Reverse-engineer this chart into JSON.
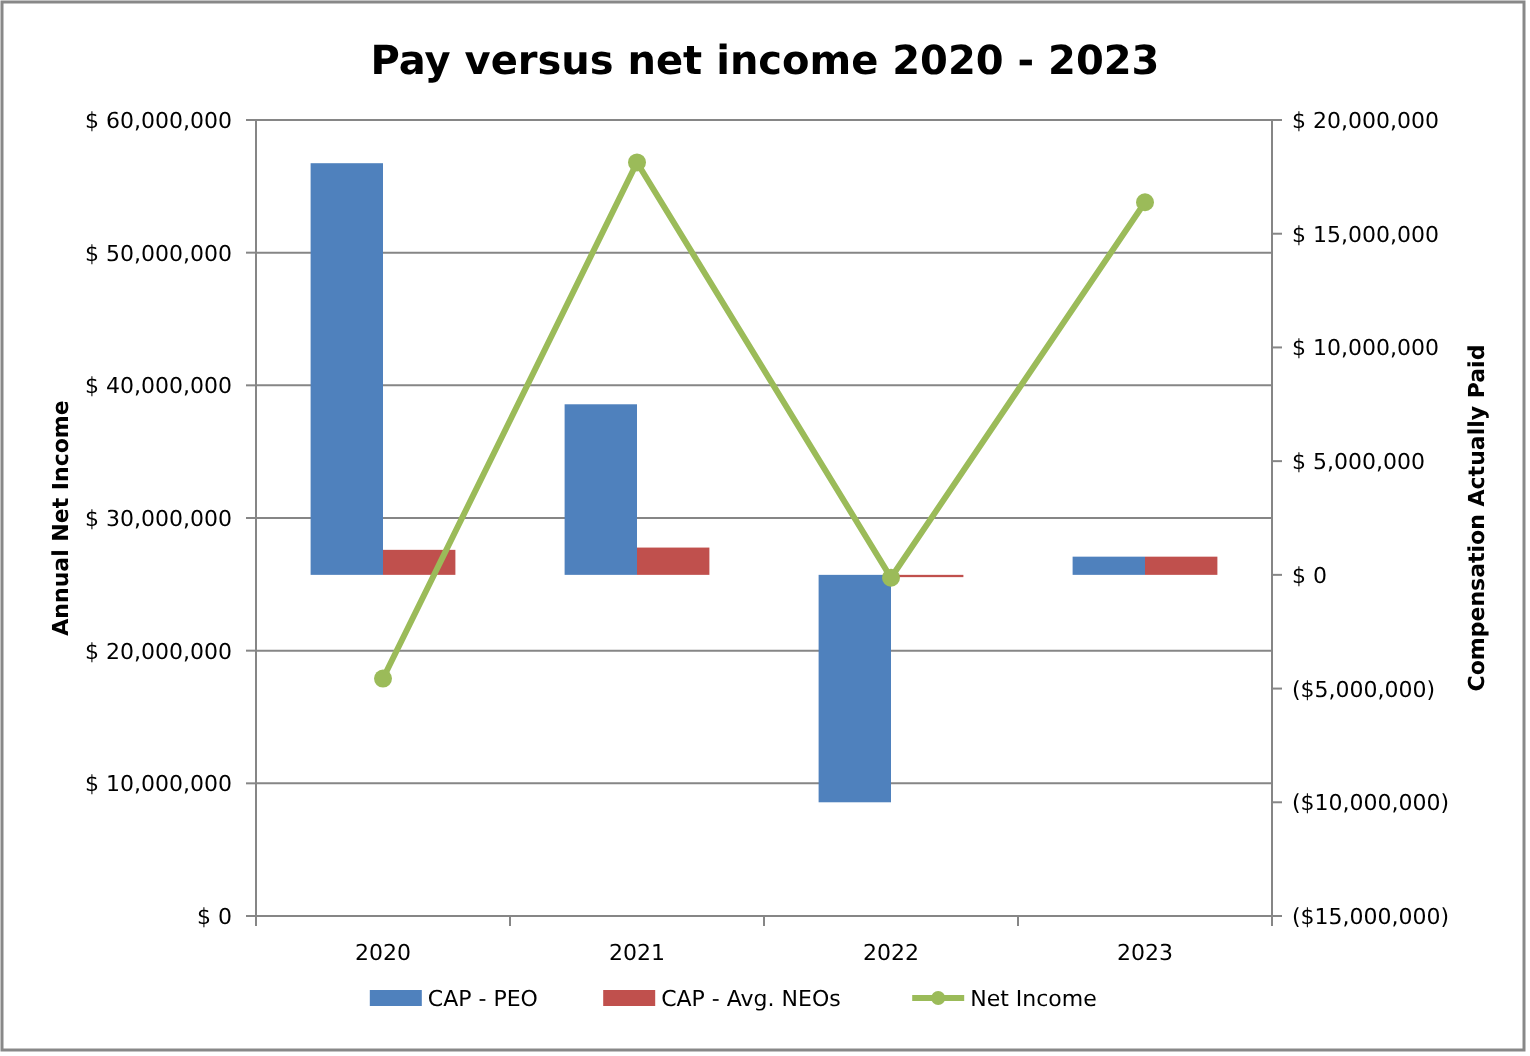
{
  "chart_data": {
    "type": "bar",
    "title": "Pay versus net income 2020 - 2023",
    "ylabel": "Annual Net Income",
    "y2label": "Compensation Actually Paid",
    "categories": [
      "2020",
      "2021",
      "2022",
      "2023"
    ],
    "series": [
      {
        "name": "CAP - PEO",
        "color": "#4f81bd",
        "axis": "y2",
        "values": [
          18100000,
          7500000,
          -10000000,
          800000
        ]
      },
      {
        "name": "CAP - Avg. NEOs",
        "color": "#c0504d",
        "axis": "y2",
        "values": [
          1100000,
          1200000,
          -100000,
          800000
        ]
      },
      {
        "name": "Net Income",
        "type": "line",
        "color": "#9bbb59",
        "marker": "circle",
        "values": [
          17900000,
          56800000,
          25500000,
          53800000
        ]
      }
    ],
    "ylim": [
      0,
      60000000
    ],
    "yticks": [
      {
        "value": 0,
        "label": "$ 0"
      },
      {
        "value": 10000000,
        "label": "$ 10,000,000"
      },
      {
        "value": 20000000,
        "label": "$ 20,000,000"
      },
      {
        "value": 30000000,
        "label": "$ 30,000,000"
      },
      {
        "value": 40000000,
        "label": "$ 40,000,000"
      },
      {
        "value": 50000000,
        "label": "$ 50,000,000"
      },
      {
        "value": 60000000,
        "label": "$ 60,000,000"
      }
    ],
    "y2lim": [
      -15000000,
      20000000
    ],
    "y2ticks": [
      {
        "value": -15000000,
        "label": "($15,000,000)"
      },
      {
        "value": -10000000,
        "label": "($10,000,000)"
      },
      {
        "value": -5000000,
        "label": "($5,000,000)"
      },
      {
        "value": 0,
        "label": "$ 0"
      },
      {
        "value": 5000000,
        "label": "$ 5,000,000"
      },
      {
        "value": 10000000,
        "label": "$ 10,000,000"
      },
      {
        "value": 15000000,
        "label": "$ 15,000,000"
      },
      {
        "value": 20000000,
        "label": "$ 20,000,000"
      }
    ],
    "grid": "y",
    "legend": "bottom"
  }
}
